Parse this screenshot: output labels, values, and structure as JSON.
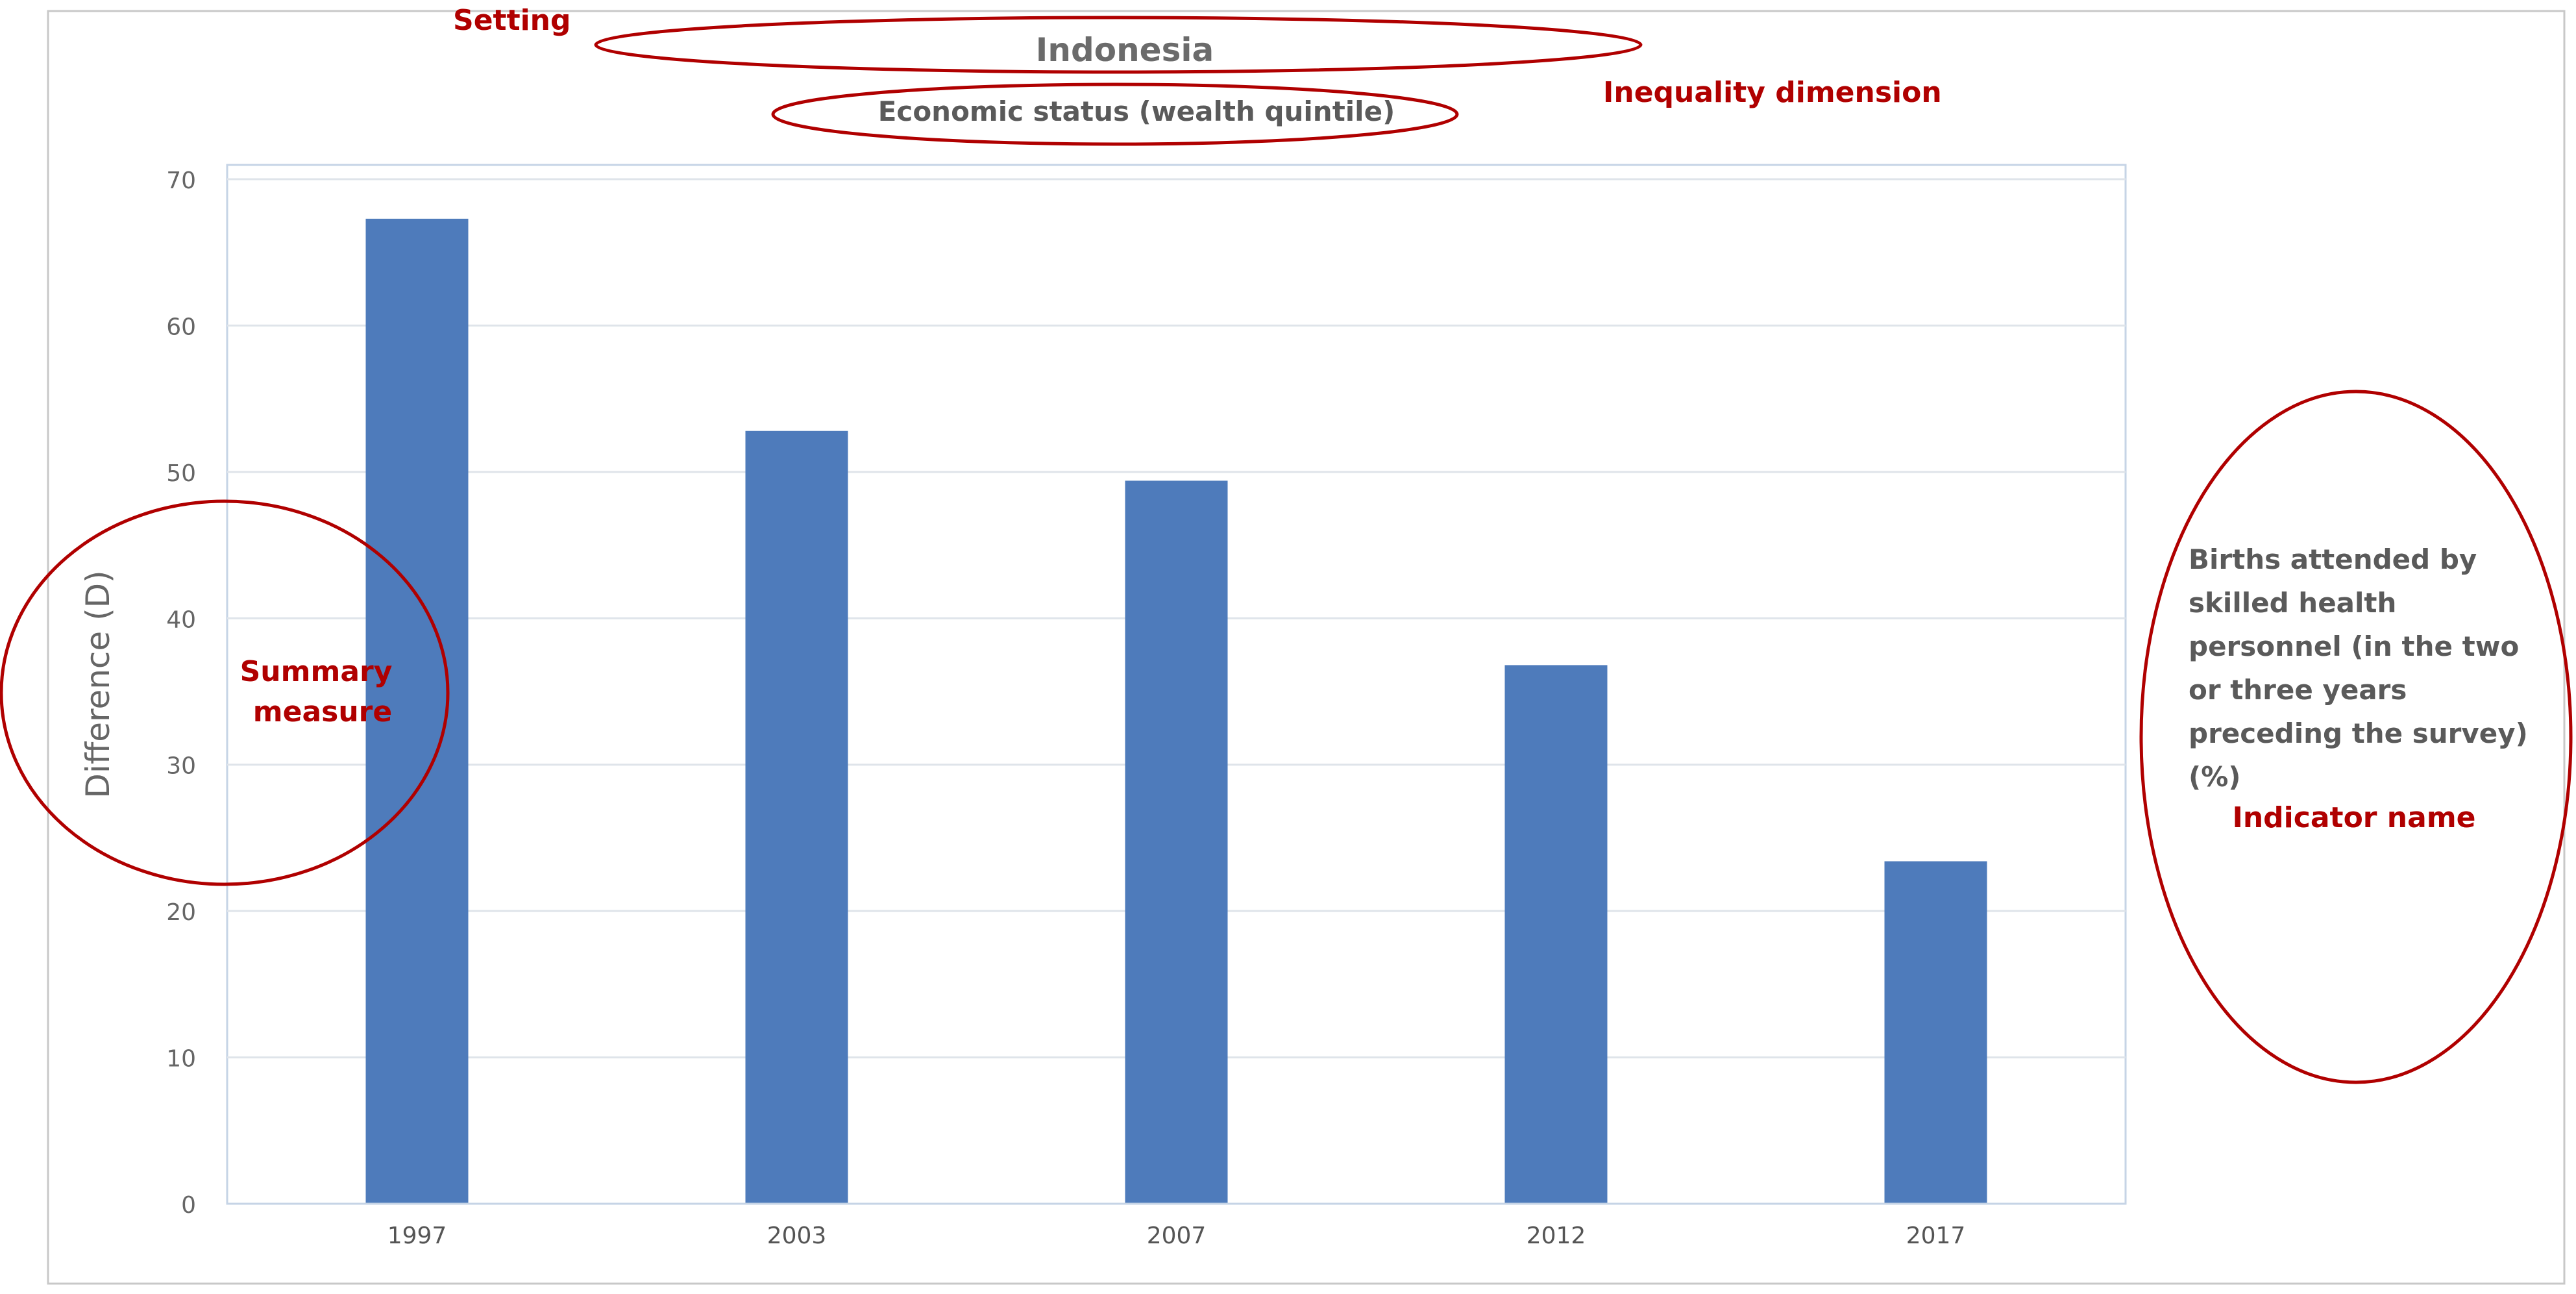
{
  "chart_data": {
    "type": "bar",
    "title": "Indonesia",
    "subtitle": "Economic status (wealth quintile)",
    "ylabel": "Difference (D)",
    "xlabel": "",
    "categories": [
      "1997",
      "2003",
      "2007",
      "2012",
      "2017"
    ],
    "values": [
      67.3,
      52.8,
      49.4,
      36.8,
      23.4
    ],
    "ylim": [
      0,
      70
    ],
    "yticks": [
      "0",
      "10",
      "20",
      "30",
      "40",
      "50",
      "60",
      "70"
    ],
    "grid": true,
    "bar_color": "#4e7bbb",
    "legend": {
      "lines": [
        "Births attended by",
        "skilled health",
        "personnel (in the two",
        "or three years",
        "preceding the survey)",
        "(%)"
      ],
      "position": "right"
    }
  },
  "annotations": {
    "color": "#b00000",
    "setting": "Setting",
    "inequality_dimension": "Inequality dimension",
    "summary_measure": [
      "Summary",
      "measure"
    ],
    "indicator_name": "Indicator name"
  }
}
